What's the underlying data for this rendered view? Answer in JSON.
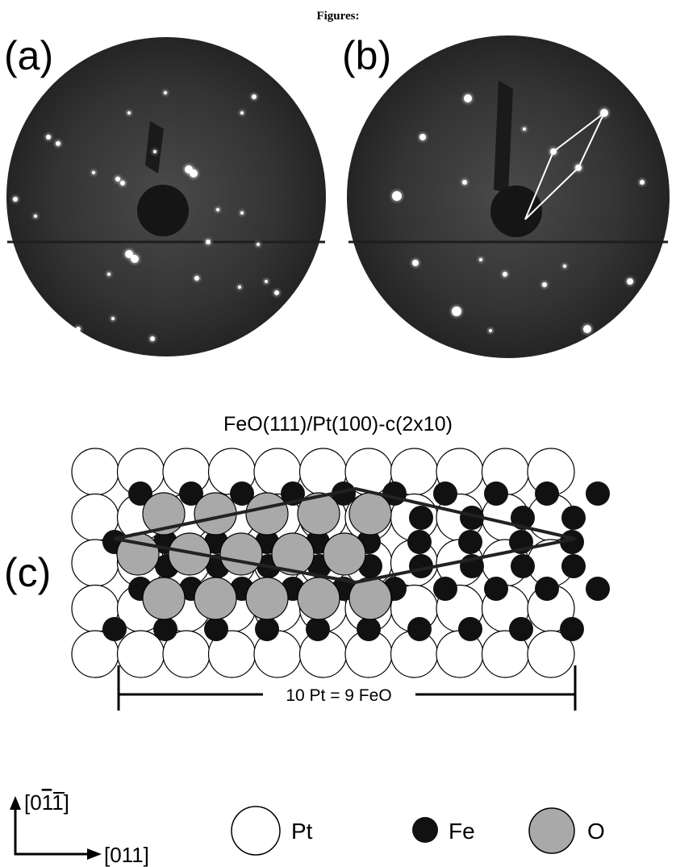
{
  "heading": "Figures:",
  "panels": {
    "a": {
      "label": "(a)"
    },
    "b": {
      "label": "(b)"
    },
    "c": {
      "label": "(c)",
      "title": "FeO(111)/Pt(100)-c(2x10)",
      "scale_label": "10 Pt = 9 FeO"
    }
  },
  "axes": {
    "vertical": {
      "label_prefix": "[0",
      "label_bar": "1",
      "label_suffix": "1]"
    },
    "horizontal": {
      "label": "[011]"
    }
  },
  "legend": [
    {
      "label": "Pt",
      "color": "#ffffff"
    },
    {
      "label": "Fe",
      "color": "#111111"
    },
    {
      "label": "O",
      "color": "#a9a9a9"
    }
  ],
  "colors": {
    "pt": "#ffffff",
    "fe": "#111111",
    "o": "#a9a9a9",
    "leed_background": "#2b2b2b",
    "outline": "#000000"
  }
}
